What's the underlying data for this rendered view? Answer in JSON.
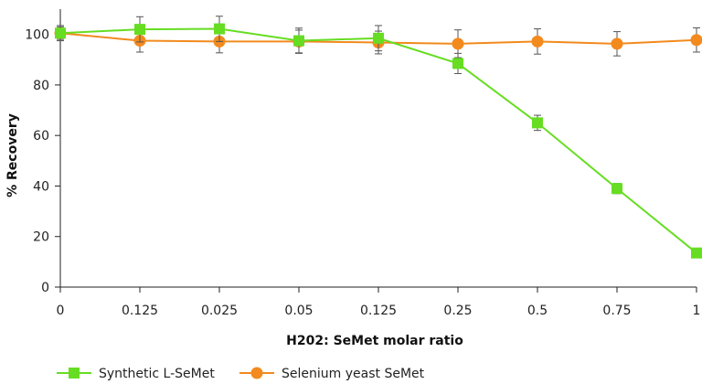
{
  "chart_data": {
    "type": "line",
    "title": "",
    "xlabel": "H202: SeMet molar ratio",
    "ylabel": "% Recovery",
    "categories": [
      "0",
      "0.125",
      "0.025",
      "0.05",
      "0.125",
      "0.25",
      "0.5",
      "0.75",
      "1"
    ],
    "ylim": [
      0,
      110
    ],
    "yticks": [
      0,
      20,
      40,
      60,
      80,
      100
    ],
    "grid": false,
    "legend_position": "bottom-left",
    "series": [
      {
        "name": "Synthetic L-SeMet",
        "color": "#66dd22",
        "marker": "square",
        "values": [
          100.5,
          102,
          102.2,
          97.5,
          98.5,
          88.5,
          65,
          39,
          13.5
        ],
        "errors": [
          2.5,
          5,
          5,
          5,
          5,
          4,
          3,
          2,
          1
        ]
      },
      {
        "name": "Selenium yeast SeMet",
        "color": "#f28a1e",
        "marker": "circle",
        "values": [
          100.5,
          97.5,
          97.2,
          97.2,
          96.8,
          96.3,
          97.2,
          96.3,
          97.8
        ],
        "errors": [
          3,
          4.5,
          4.5,
          4.5,
          4.5,
          5.5,
          5,
          4.8,
          4.8
        ]
      }
    ]
  }
}
